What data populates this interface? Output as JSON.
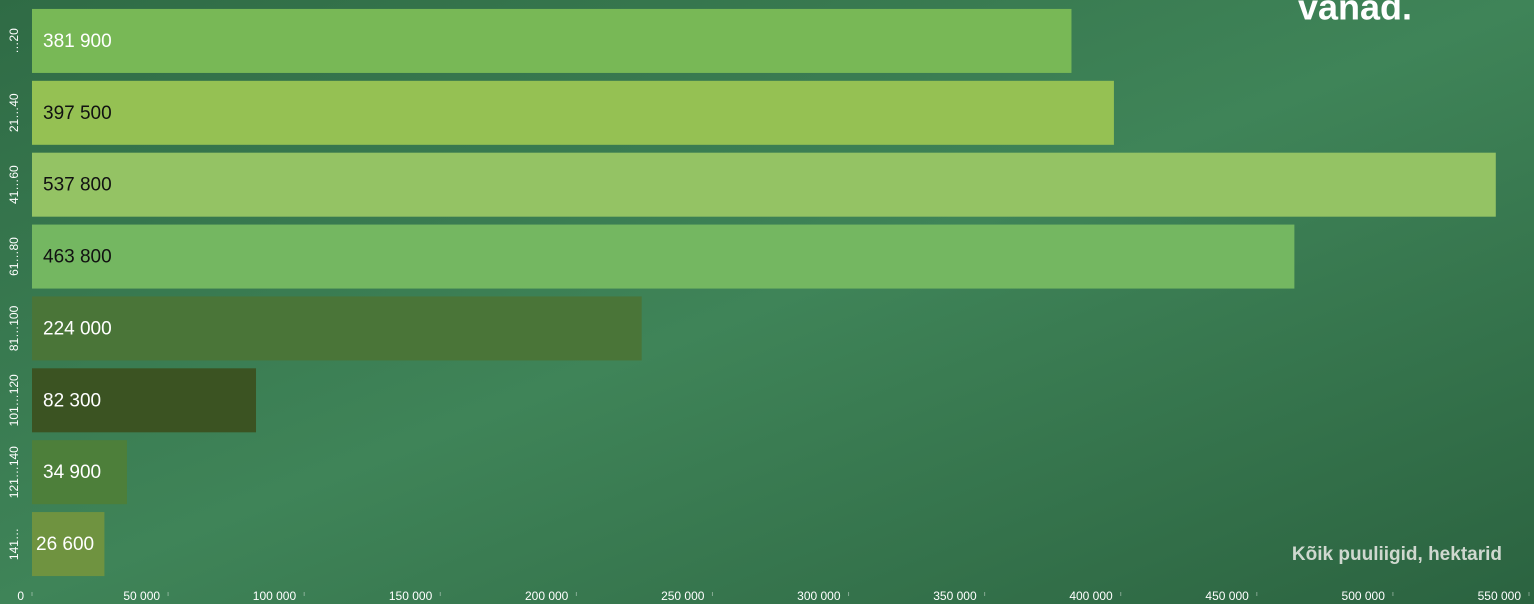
{
  "chart_data": {
    "type": "barh",
    "title": "vanad.",
    "annotation": "Kõik puuliigid, hektarid",
    "categories": [
      "…20",
      "21…40",
      "41…60",
      "61…80",
      "81…100",
      "101…120",
      "121…140",
      "141…"
    ],
    "values": [
      381900,
      397500,
      537800,
      463800,
      224000,
      82300,
      34900,
      26600
    ],
    "value_labels": [
      "381 900",
      "397 500",
      "537 800",
      "463 800",
      "224 000",
      "82 300",
      "34 900",
      "26 600"
    ],
    "colors": [
      "#78b856",
      "#95c153",
      "#94c364",
      "#74b761",
      "#4a7538",
      "#3b5322",
      "#4d7f3a",
      "#6f9340"
    ],
    "label_colors": [
      "#ffffff",
      "#111111",
      "#111111",
      "#111111",
      "#ffffff",
      "#ffffff",
      "#ffffff",
      "#ffffff"
    ],
    "xlim": [
      0,
      550000
    ],
    "xticks": [
      0,
      {
        "value": 50000,
        "label": "50 000"
      },
      {
        "value": 100000,
        "label": "100 000"
      },
      {
        "value": 150000,
        "label": "150 000"
      },
      {
        "value": 200000,
        "label": "200 000"
      },
      {
        "value": 250000,
        "label": "250 000"
      },
      {
        "value": 300000,
        "label": "300 000"
      },
      {
        "value": 350000,
        "label": "350 000"
      },
      {
        "value": 400000,
        "label": "400 000"
      },
      {
        "value": 450000,
        "label": "450 000"
      },
      {
        "value": 500000,
        "label": "500 000"
      },
      {
        "value": 550000,
        "label": "550 000"
      }
    ]
  }
}
